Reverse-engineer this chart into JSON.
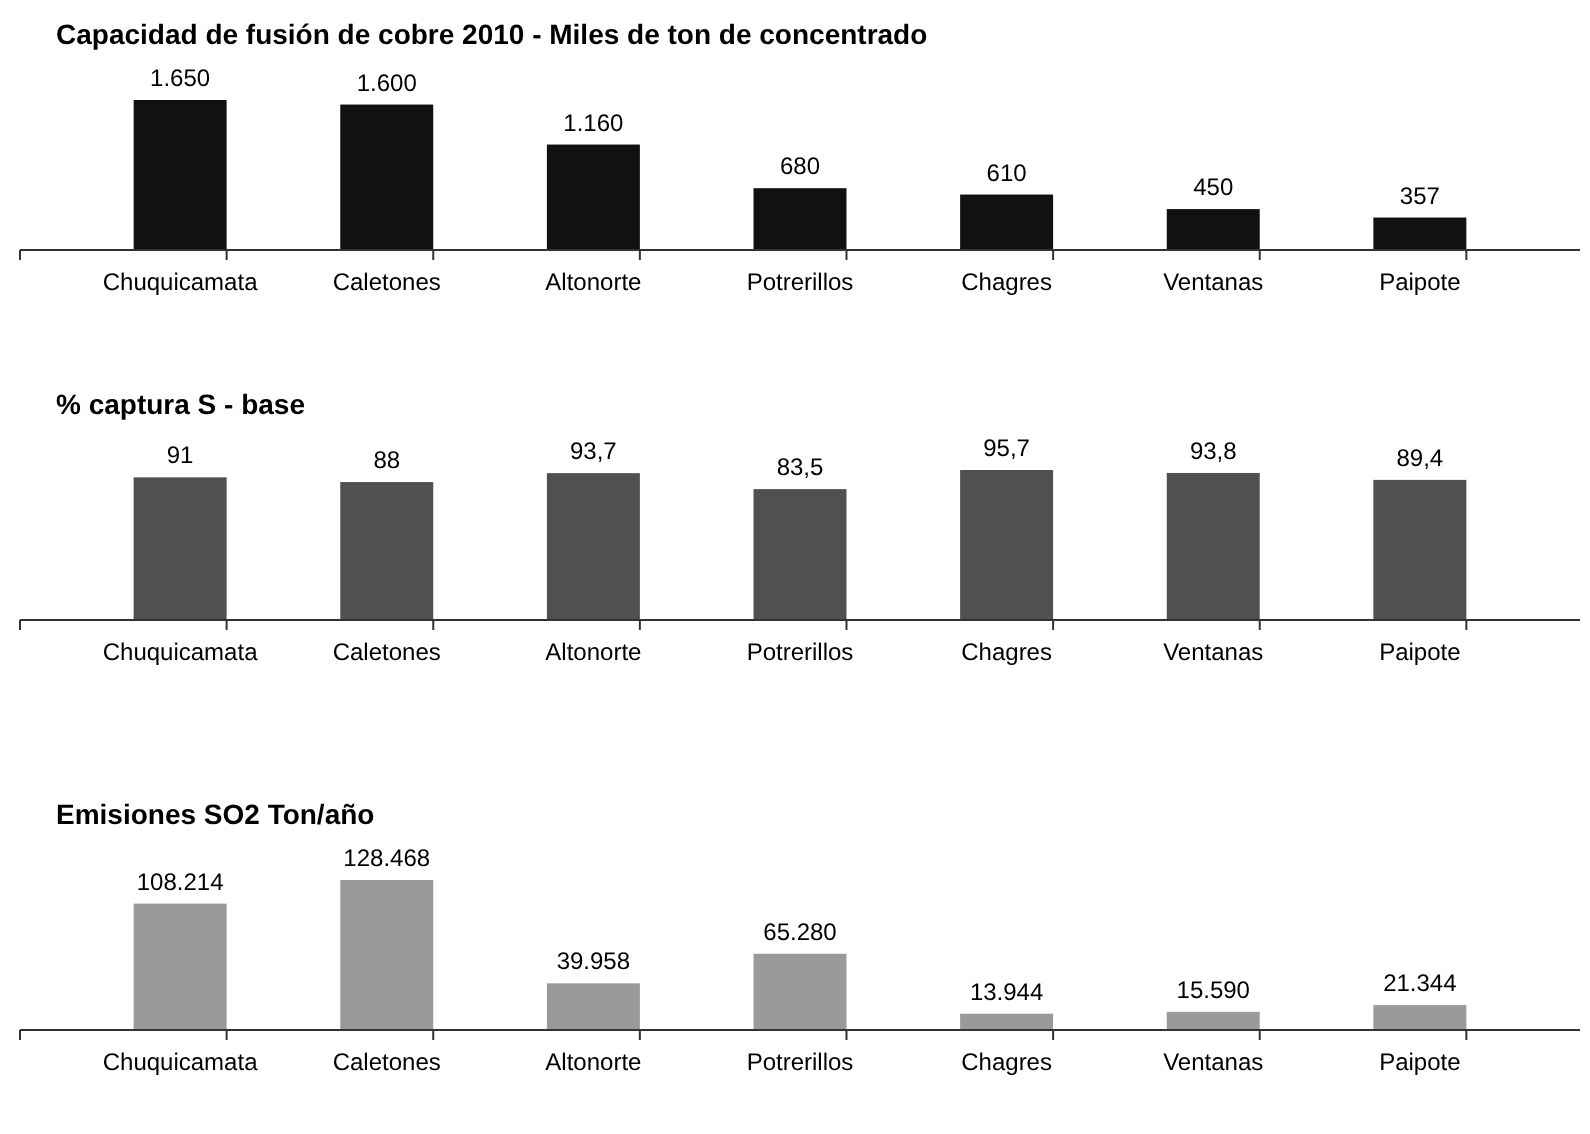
{
  "chart_data": [
    {
      "type": "bar",
      "title": "Capacidad de fusión de cobre 2010 - Miles de ton de concentrado",
      "categories": [
        "Chuquicamata",
        "Caletones",
        "Altonorte",
        "Potrerillos",
        "Chagres",
        "Ventanas",
        "Paipote"
      ],
      "values": [
        1650,
        1600,
        1160,
        680,
        610,
        450,
        357
      ],
      "value_labels": [
        "1.650",
        "1.600",
        "1.160",
        "680",
        "610",
        "450",
        "357"
      ],
      "color": "#111111",
      "tick_labels": "x"
    },
    {
      "type": "bar",
      "title": "% captura S - base",
      "categories": [
        "Chuquicamata",
        "Caletones",
        "Altonorte",
        "Potrerillos",
        "Chagres",
        "Ventanas",
        "Paipote"
      ],
      "values": [
        91,
        88,
        93.7,
        83.5,
        95.7,
        93.8,
        89.4
      ],
      "value_labels": [
        "91",
        "88",
        "93,7",
        "83,5",
        "95,7",
        "93,8",
        "89,4"
      ],
      "color": "#505050",
      "tick_labels": "x"
    },
    {
      "type": "bar",
      "title": "Emisiones SO2 Ton/año",
      "categories": [
        "Chuquicamata",
        "Caletones",
        "Altonorte",
        "Potrerillos",
        "Chagres",
        "Ventanas",
        "Paipote"
      ],
      "values": [
        108214,
        128468,
        39958,
        65280,
        13944,
        15590,
        21344
      ],
      "value_labels": [
        "108.214",
        "128.468",
        "39.958",
        "65.280",
        "13.944",
        "15.590",
        "21.344"
      ],
      "color": "#9a9a9a",
      "tick_labels": "x"
    }
  ]
}
